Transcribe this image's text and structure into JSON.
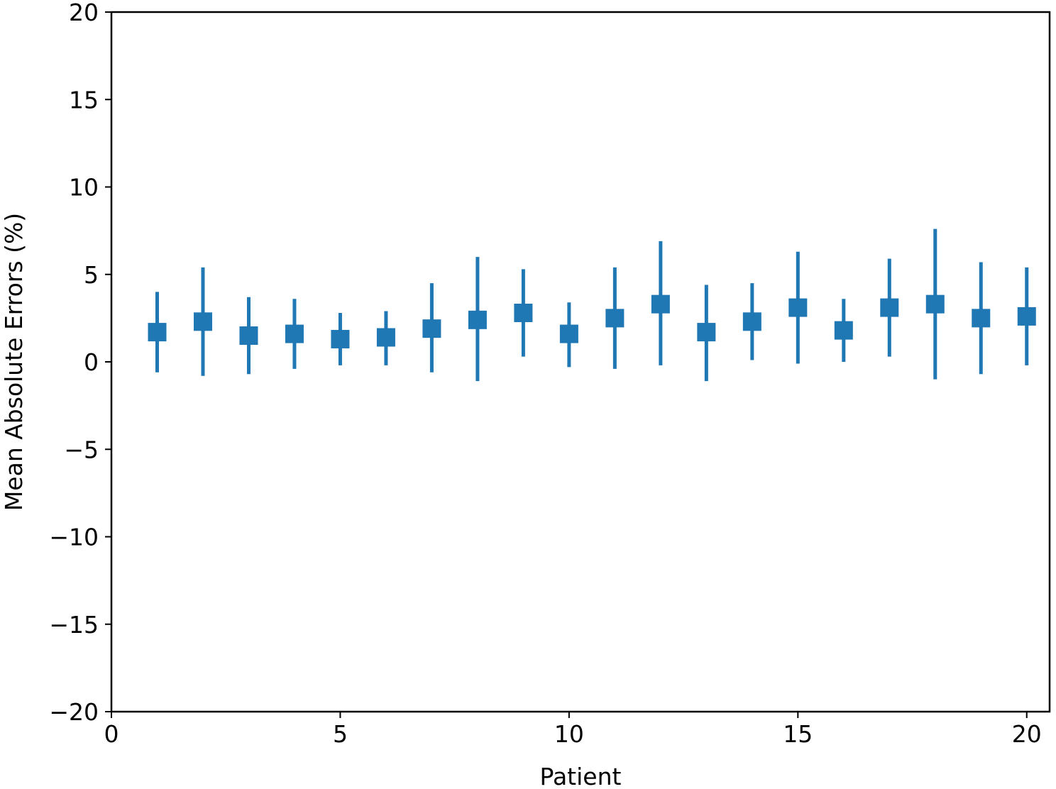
{
  "chart_data": {
    "type": "scatter",
    "marker": "square",
    "error_bars": true,
    "title": "",
    "xlabel": "Patient",
    "ylabel": "Mean Absolute Errors (%)",
    "xlim": [
      0,
      20.5
    ],
    "ylim": [
      -20,
      20
    ],
    "xticks": [
      0,
      5,
      10,
      15,
      20
    ],
    "yticks": [
      -20,
      -15,
      -10,
      -5,
      0,
      5,
      10,
      15,
      20
    ],
    "xtick_labels": [
      "0",
      "5",
      "10",
      "15",
      "20"
    ],
    "ytick_labels": [
      "−20",
      "−15",
      "−10",
      "−5",
      "0",
      "5",
      "10",
      "15",
      "20"
    ],
    "grid": false,
    "legend": false,
    "color": "#1f77b4",
    "points": [
      {
        "x": 1,
        "y": 1.7,
        "low": -0.6,
        "high": 4.0
      },
      {
        "x": 2,
        "y": 2.3,
        "low": -0.8,
        "high": 5.4
      },
      {
        "x": 3,
        "y": 1.5,
        "low": -0.7,
        "high": 3.7
      },
      {
        "x": 4,
        "y": 1.6,
        "low": -0.4,
        "high": 3.6
      },
      {
        "x": 5,
        "y": 1.3,
        "low": -0.2,
        "high": 2.8
      },
      {
        "x": 6,
        "y": 1.4,
        "low": -0.2,
        "high": 2.9
      },
      {
        "x": 7,
        "y": 1.9,
        "low": -0.6,
        "high": 4.5
      },
      {
        "x": 8,
        "y": 2.4,
        "low": -1.1,
        "high": 6.0
      },
      {
        "x": 9,
        "y": 2.8,
        "low": 0.3,
        "high": 5.3
      },
      {
        "x": 10,
        "y": 1.6,
        "low": -0.3,
        "high": 3.4
      },
      {
        "x": 11,
        "y": 2.5,
        "low": -0.4,
        "high": 5.4
      },
      {
        "x": 12,
        "y": 3.3,
        "low": -0.2,
        "high": 6.9
      },
      {
        "x": 13,
        "y": 1.7,
        "low": -1.1,
        "high": 4.4
      },
      {
        "x": 14,
        "y": 2.3,
        "low": 0.1,
        "high": 4.5
      },
      {
        "x": 15,
        "y": 3.1,
        "low": -0.1,
        "high": 6.3
      },
      {
        "x": 16,
        "y": 1.8,
        "low": 0.0,
        "high": 3.6
      },
      {
        "x": 17,
        "y": 3.1,
        "low": 0.3,
        "high": 5.9
      },
      {
        "x": 18,
        "y": 3.3,
        "low": -1.0,
        "high": 7.6
      },
      {
        "x": 19,
        "y": 2.5,
        "low": -0.7,
        "high": 5.7
      },
      {
        "x": 20,
        "y": 2.6,
        "low": -0.2,
        "high": 5.4
      }
    ]
  }
}
